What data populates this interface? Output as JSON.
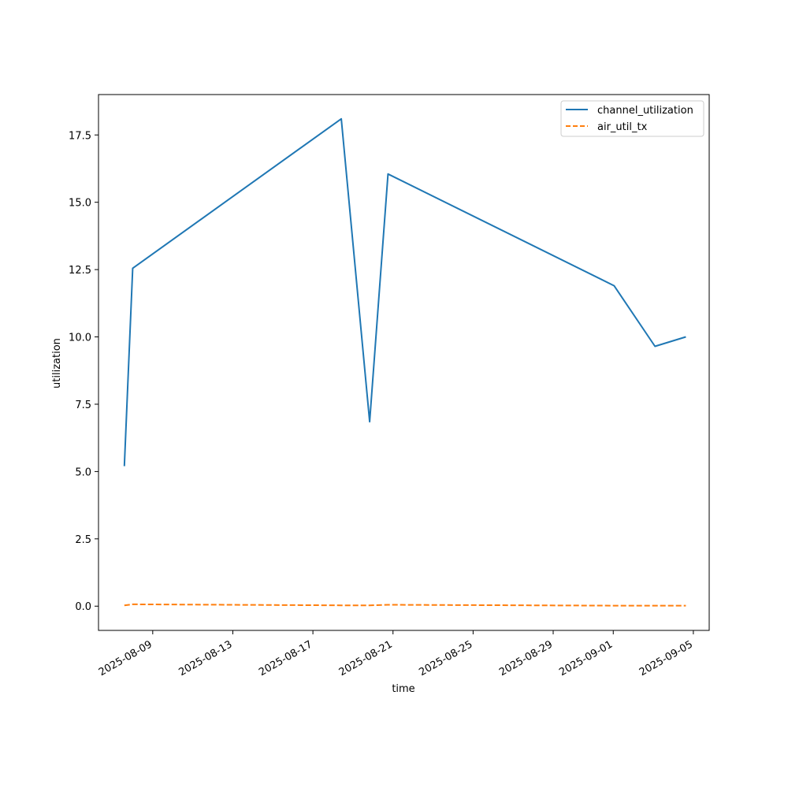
{
  "chart_data": {
    "type": "line",
    "xlabel": "time",
    "ylabel": "utilization",
    "x_ticks": [
      "2025-08-09",
      "2025-08-13",
      "2025-08-17",
      "2025-08-21",
      "2025-08-25",
      "2025-08-29",
      "2025-09-01",
      "2025-09-05"
    ],
    "y_ticks": [
      "0.0",
      "2.5",
      "5.0",
      "7.5",
      "10.0",
      "12.5",
      "15.0",
      "17.5"
    ],
    "xlim": [
      "2025-08-06 07:00",
      "2025-09-05 19:00"
    ],
    "ylim": [
      -0.9,
      19.0
    ],
    "grid": false,
    "legend_position": "top-right",
    "series": [
      {
        "name": "channel_utilization",
        "color": "#1f77b4",
        "style": "solid",
        "points": [
          {
            "x": "2025-08-07 14:00",
            "y": 5.2
          },
          {
            "x": "2025-08-08 00:00",
            "y": 12.55
          },
          {
            "x": "2025-08-18 10:00",
            "y": 18.1
          },
          {
            "x": "2025-08-19 20:00",
            "y": 6.85
          },
          {
            "x": "2025-08-20 18:00",
            "y": 16.05
          },
          {
            "x": "2025-09-01 01:00",
            "y": 11.9
          },
          {
            "x": "2025-09-03 02:00",
            "y": 9.65
          },
          {
            "x": "2025-09-04 15:00",
            "y": 10.0
          }
        ]
      },
      {
        "name": "air_util_tx",
        "color": "#ff7f0e",
        "style": "dashed",
        "points": [
          {
            "x": "2025-08-07 14:00",
            "y": 0.03
          },
          {
            "x": "2025-08-08 00:00",
            "y": 0.07
          },
          {
            "x": "2025-08-18 10:00",
            "y": 0.03
          },
          {
            "x": "2025-08-19 20:00",
            "y": 0.03
          },
          {
            "x": "2025-08-20 18:00",
            "y": 0.05
          },
          {
            "x": "2025-09-01 01:00",
            "y": 0.02
          },
          {
            "x": "2025-09-03 02:00",
            "y": 0.02
          },
          {
            "x": "2025-09-04 15:00",
            "y": 0.02
          }
        ]
      }
    ]
  }
}
